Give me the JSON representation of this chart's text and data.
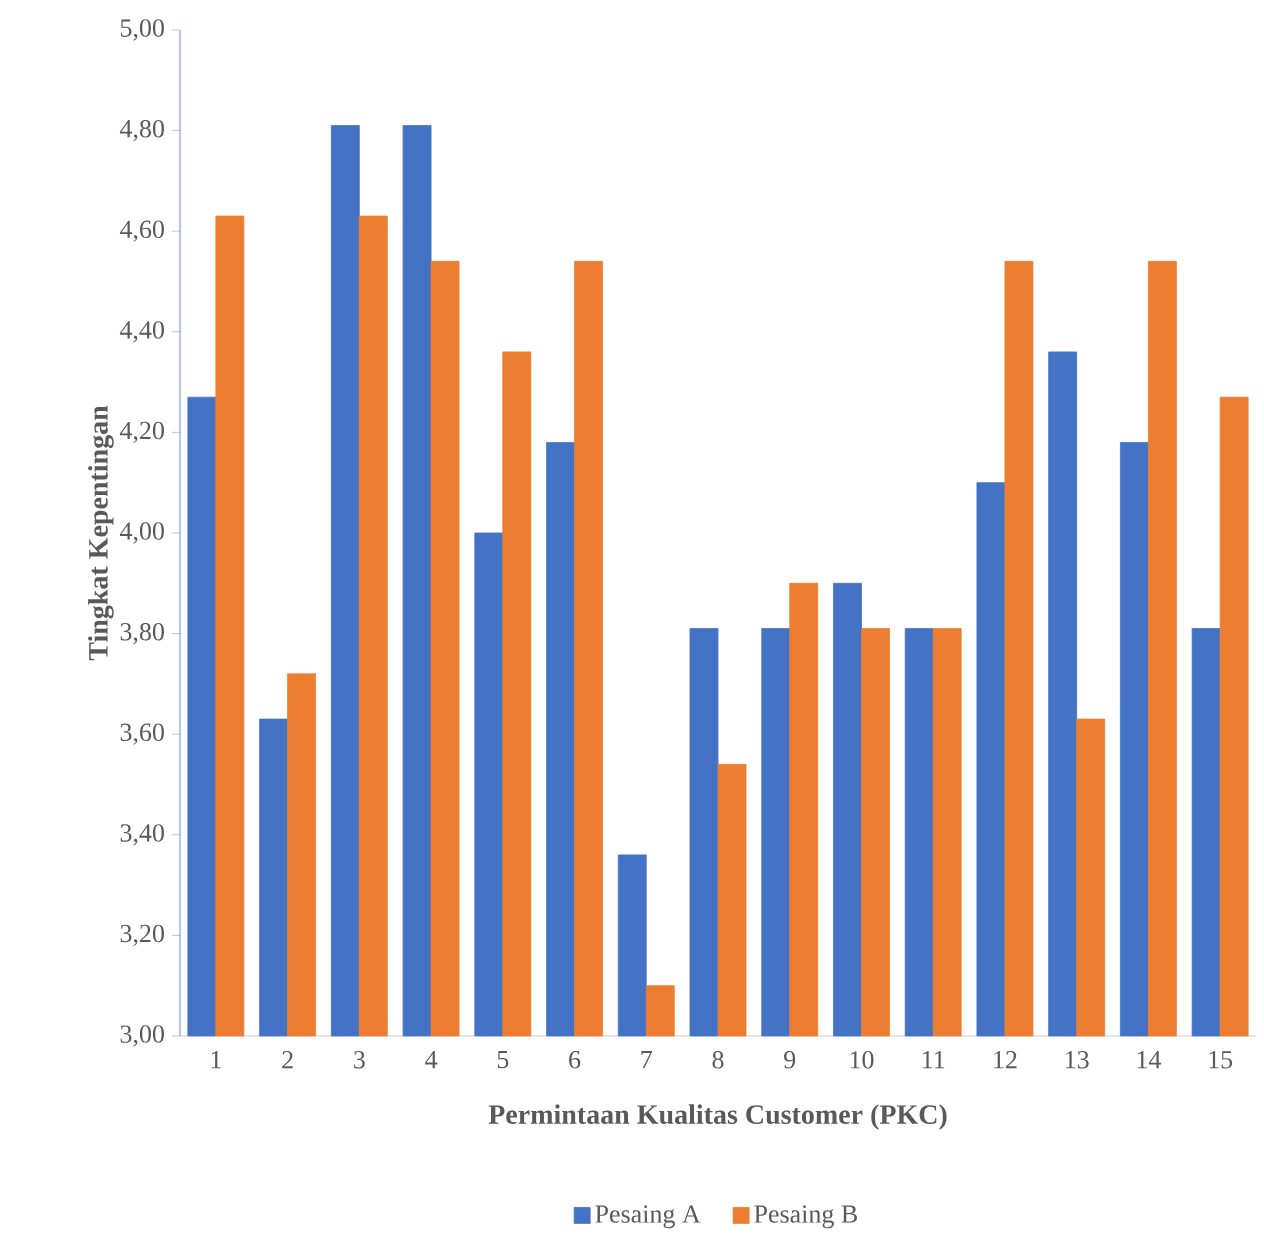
{
  "chart_data": {
    "type": "bar",
    "xlabel": "Permintaan Kualitas Customer (PKC)",
    "ylabel": "Tingkat Kepentingan",
    "categories": [
      "1",
      "2",
      "3",
      "4",
      "5",
      "6",
      "7",
      "8",
      "9",
      "10",
      "11",
      "12",
      "13",
      "14",
      "15"
    ],
    "series": [
      {
        "name": "Pesaing A",
        "color": "#4472c4",
        "values": [
          4.27,
          3.63,
          4.81,
          4.81,
          4.0,
          4.18,
          3.36,
          3.81,
          3.81,
          3.9,
          3.81,
          4.1,
          4.36,
          4.18,
          3.81
        ]
      },
      {
        "name": "Pesaing B",
        "color": "#ed7d31",
        "values": [
          4.63,
          3.72,
          4.63,
          4.54,
          4.36,
          4.54,
          3.1,
          3.54,
          3.9,
          3.81,
          3.81,
          4.54,
          3.63,
          4.54,
          4.27
        ]
      }
    ],
    "ylim": [
      3.0,
      5.0
    ],
    "yticks": [
      {
        "value": 3.0,
        "label": "3,00"
      },
      {
        "value": 3.2,
        "label": "3,20"
      },
      {
        "value": 3.4,
        "label": "3,40"
      },
      {
        "value": 3.6,
        "label": "3,60"
      },
      {
        "value": 3.8,
        "label": "3,80"
      },
      {
        "value": 4.0,
        "label": "4,00"
      },
      {
        "value": 4.2,
        "label": "4,20"
      },
      {
        "value": 4.4,
        "label": "4,40"
      },
      {
        "value": 4.6,
        "label": "4,60"
      },
      {
        "value": 4.8,
        "label": "4,80"
      },
      {
        "value": 5.0,
        "label": "5,00"
      }
    ],
    "grid": false,
    "legend": "bottom"
  }
}
